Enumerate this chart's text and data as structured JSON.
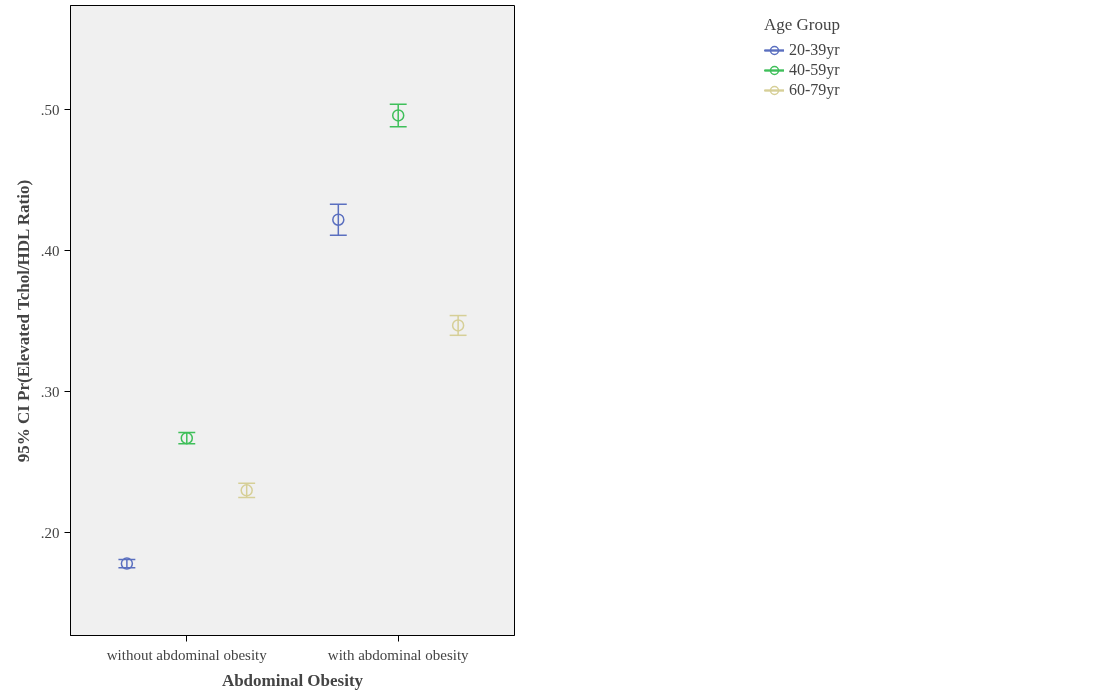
{
  "chart_data": {
    "type": "scatter",
    "xlabel": "Abdominal Obesity",
    "ylabel": "95% CI Pr(Elevated Tchol/HDL Ratio)",
    "legend_title": "Age Group",
    "categories": [
      "without abdominal obesity",
      "with abdominal obesity"
    ],
    "series": [
      {
        "name": "20-39yr",
        "color": "#5a6fbf",
        "values": [
          0.178,
          0.422
        ],
        "errors": [
          [
            0.175,
            0.181
          ],
          [
            0.411,
            0.433
          ]
        ]
      },
      {
        "name": "40-59yr",
        "color": "#3fbf5a",
        "values": [
          0.267,
          0.496
        ],
        "errors": [
          [
            0.263,
            0.271
          ],
          [
            0.488,
            0.504
          ]
        ]
      },
      {
        "name": "60-79yr",
        "color": "#d6cf97",
        "values": [
          0.23,
          0.347
        ],
        "errors": [
          [
            0.225,
            0.235
          ],
          [
            0.34,
            0.354
          ]
        ]
      }
    ],
    "ylim": [
      0.127,
      0.574
    ],
    "yticks": [
      {
        "value": 0.2,
        "label": ".20"
      },
      {
        "value": 0.3,
        "label": ".30"
      },
      {
        "value": 0.4,
        "label": ".40"
      },
      {
        "value": 0.5,
        "label": ".50"
      }
    ],
    "marker": "circle",
    "legend": "top right",
    "grid": false
  }
}
